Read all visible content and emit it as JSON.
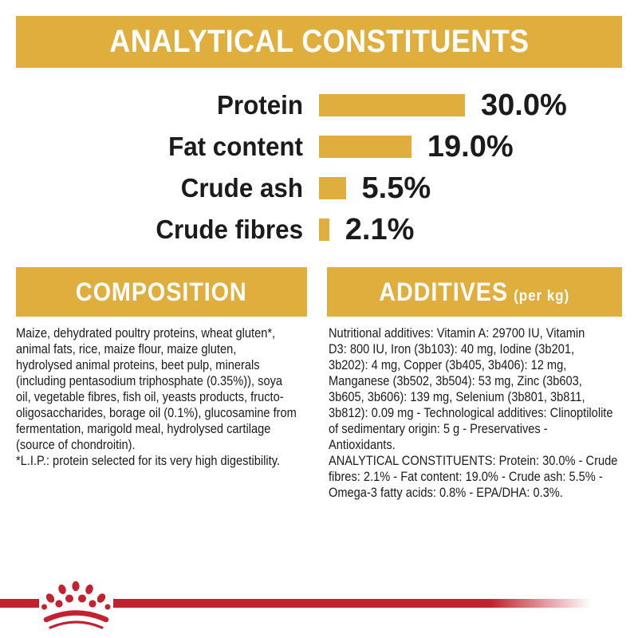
{
  "colors": {
    "gold": "#DFAE3C",
    "red": "#C2222F",
    "text": "#1B1B1B",
    "white": "#FFFFFF"
  },
  "header": {
    "title": "ANALYTICAL CONSTITUENTS"
  },
  "chart_data": {
    "type": "bar",
    "orientation": "horizontal",
    "title": "ANALYTICAL CONSTITUENTS",
    "categories": [
      "Protein",
      "Fat content",
      "Crude ash",
      "Crude fibres"
    ],
    "values": [
      30.0,
      19.0,
      5.5,
      2.1
    ],
    "value_labels": [
      "30.0%",
      "19.0%",
      "5.5%",
      "2.1%"
    ],
    "unit": "%",
    "xlim": [
      0,
      33
    ],
    "bar_color": "#DFAE3C",
    "grid": false,
    "legend": false
  },
  "sections": {
    "composition": {
      "title": "COMPOSITION",
      "lines": [
        "Maize, dehydrated poultry proteins, wheat gluten*,",
        "animal fats, rice, maize flour, maize gluten,",
        "hydrolysed animal proteins, beet pulp, minerals",
        "(including pentasodium triphosphate (0.35%)), soya",
        "oil, vegetable fibres, fish oil, yeasts products, fructo-",
        "oligosaccharides, borage oil (0.1%), glucosamine from",
        "fermentation, marigold meal, hydrolysed cartilage",
        "(source of chondroitin).",
        "*L.I.P.: protein selected for its very high digestibility."
      ]
    },
    "additives": {
      "title": "ADDITIVES",
      "title_suffix": "(per kg)",
      "lines": [
        "Nutritional additives: Vitamin A: 29700 IU, Vitamin",
        "D3: 800 IU, Iron (3b103): 40 mg, Iodine (3b201,",
        "3b202): 4 mg, Copper (3b405, 3b406): 12 mg,",
        "Manganese (3b502, 3b504): 53 mg, Zinc (3b603,",
        "3b605, 3b606): 139 mg, Selenium (3b801, 3b811,",
        "3b812): 0.09 mg - Technological additives: Clinoptilolite",
        "of sedimentary origin: 5 g - Preservatives -",
        "Antioxidants.",
        "ANALYTICAL CONSTITUENTS: Protein: 30.0% - Crude",
        "fibres: 2.1% - Fat content: 19.0% - Crude ash: 5.5% -",
        "Omega-3 fatty acids: 0.8% - EPA/DHA: 0.3%."
      ]
    }
  },
  "footer": {
    "brand_icon": "royal-canin-crown-icon"
  }
}
